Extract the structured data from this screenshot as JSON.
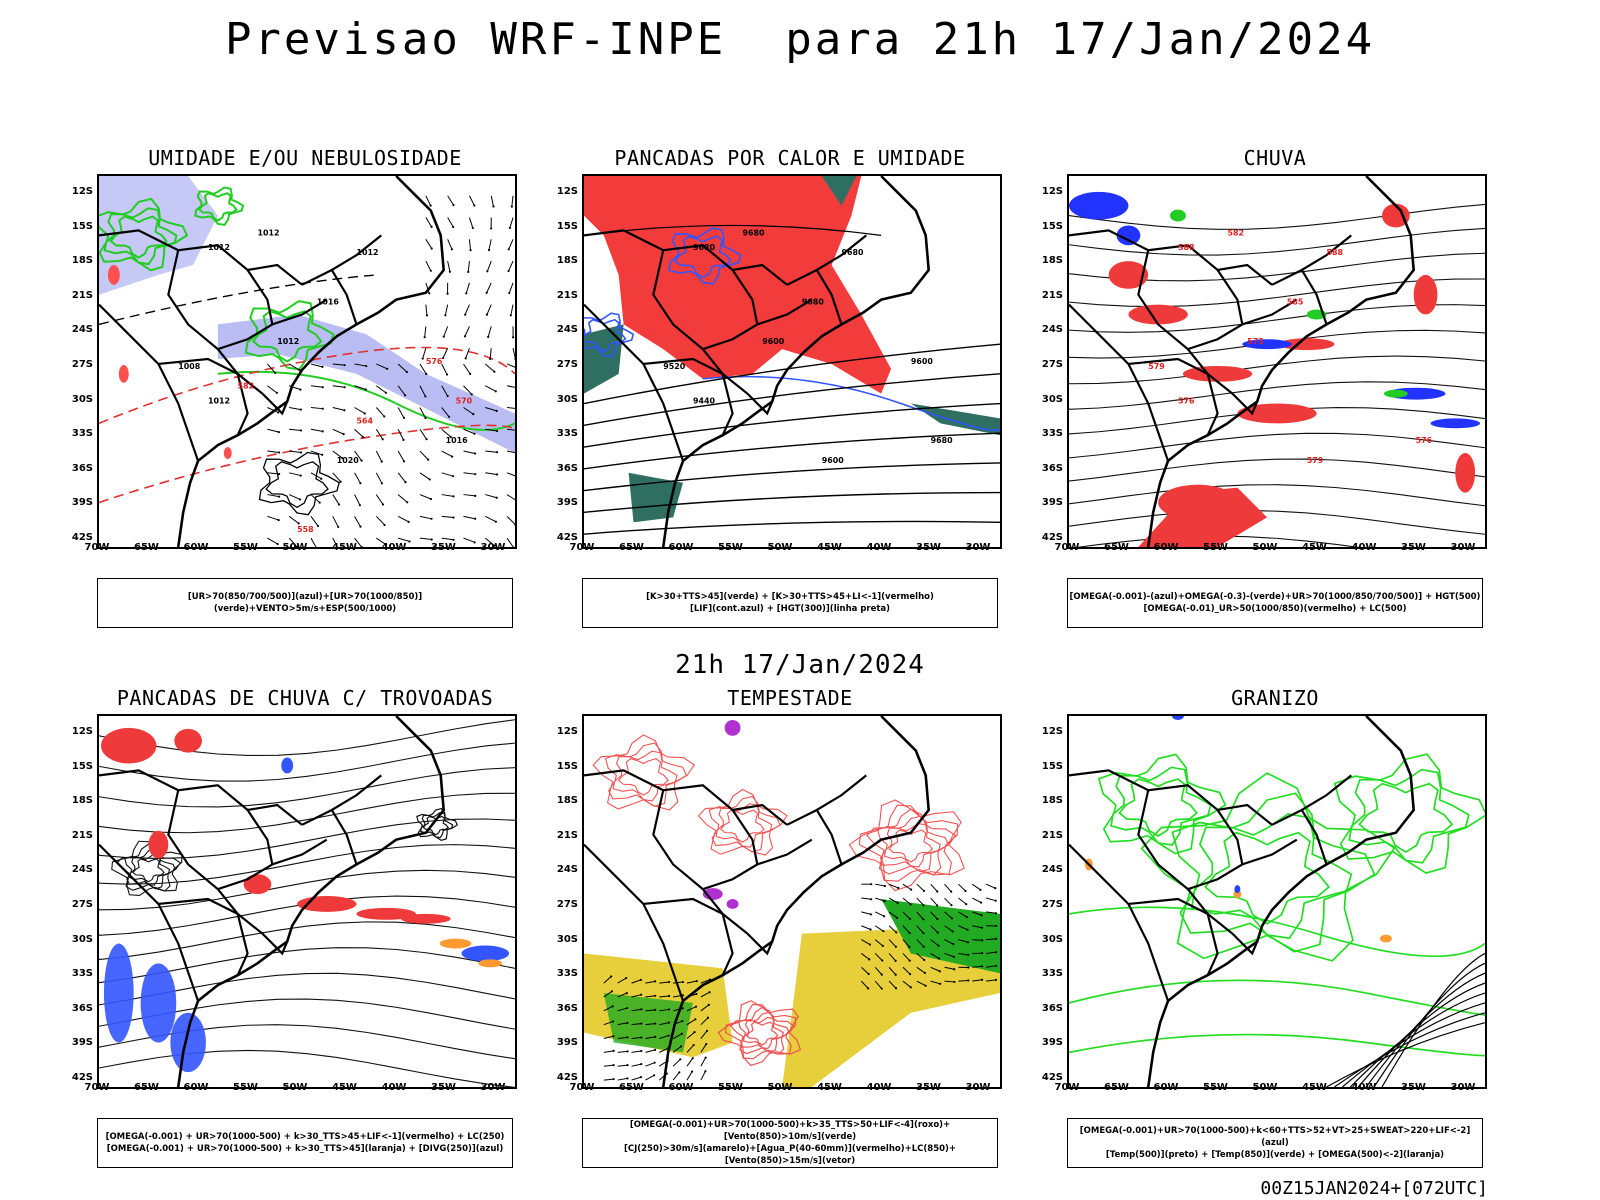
{
  "header": {
    "title": "Previsao WRF-INPE  para 21h 17/Jan/2024"
  },
  "middle": {
    "date": "21h 17/Jan/2024"
  },
  "footer": {
    "run": "00Z15JAN2024+[072UTC]"
  },
  "axes": {
    "lat_labels": [
      "12S",
      "15S",
      "18S",
      "21S",
      "24S",
      "27S",
      "30S",
      "33S",
      "36S",
      "39S",
      "42S"
    ],
    "lon_labels": [
      "70W",
      "65W",
      "60W",
      "55W",
      "50W",
      "45W",
      "40W",
      "35W",
      "30W"
    ]
  },
  "panels": [
    {
      "title": "UMIDADE E/OU NEBULOSIDADE",
      "legend": [
        "[UR>70(850/700/500)](azul)+[UR>70(1000/850)](verde)+VENTO>5m/s+ESP(500/1000)"
      ],
      "contour_labels": [
        "1012",
        "1012",
        "1012",
        "1016",
        "1020",
        "1016",
        "1012",
        "1008",
        "1012",
        "576",
        "570",
        "564",
        "558",
        "582"
      ]
    },
    {
      "title": "PANCADAS POR CALOR E UMIDADE",
      "legend": [
        "[K>30+TTS>45](verde) + [K>30+TTS>45+LI<-1](vermelho)",
        "[LIF](cont.azul) + [HGT(300)](linha preta)"
      ],
      "contour_labels": [
        "9680",
        "9680",
        "9680",
        "9680",
        "9600",
        "9680",
        "9600",
        "9520",
        "9440",
        "9600"
      ]
    },
    {
      "title": "CHUVA",
      "legend": [
        "[OMEGA(-0.001)-(azul)+OMEGA(-0.3)-(verde)+UR>70(1000/850/700/500)] + HGT(500)",
        "[OMEGA(-0.01)_UR>50(1000/850)(vermelho) + LC(500)"
      ],
      "contour_labels": [
        "588",
        "588",
        "582",
        "585",
        "579",
        "576",
        "573",
        "579",
        "576"
      ]
    },
    {
      "title": "PANCADAS DE CHUVA C/ TROVOADAS",
      "legend": [
        "[OMEGA(-0.001) + UR>70(1000-500) + k>30_TTS>45+LIF<-1](vermelho) + LC(250)",
        "[OMEGA(-0.001) + UR>70(1000-500) + k>30_TTS>45](laranja) + [DIVG(250)](azul)"
      ],
      "contour_labels": []
    },
    {
      "title": "TEMPESTADE",
      "legend": [
        "[OMEGA(-0.001)+UR>70(1000-500)+k>35_TTS>50+LIF<-4](roxo)+[Vento(850)>10m/s](verde)",
        "[CJ(250)>30m/s](amarelo)+[Agua_P(40-60mm)](vermelho)+LC(850)+[Vento(850)>15m/s](vetor)"
      ],
      "contour_labels": []
    },
    {
      "title": "GRANIZO",
      "legend": [
        "[OMEGA(-0.001)+UR>70(1000-500)+k<60+TTS>52+VT>25+SWEAT>220+LIF<-2](azul)",
        "[Temp(500)](preto) + [Temp(850)](verde) + [OMEGA(500)<-2](laranja)"
      ],
      "contour_labels": []
    }
  ]
}
